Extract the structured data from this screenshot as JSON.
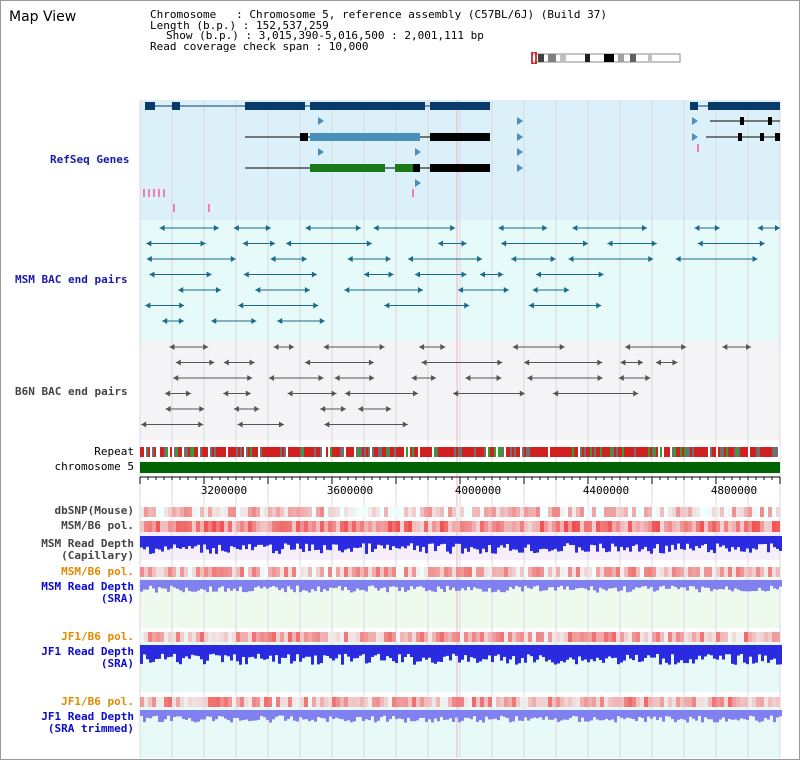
{
  "view": {
    "title": "Map View"
  },
  "info": {
    "chromosome": "Chromosome   : Chromosome 5, reference assembly (C57BL/6J) (Build 37)",
    "length": "Length (b.p.) : 152,537,259",
    "show": "Show (b.p.) : 3,015,390-5,016,500 : 2,001,111 bp",
    "coverage": "Read coverage check span : 10,000"
  },
  "tracks": {
    "refseq": "RefSeq Genes",
    "msm_bac": "MSM BAC end pairs",
    "b6n_bac": "B6N BAC end pairs",
    "repeat": "Repeat",
    "chromosome": "chromosome 5",
    "dbsnp": "dbSNP(Mouse)",
    "msm_b6_pol": "MSM/B6 pol.",
    "msm_depth_cap_1": "MSM Read Depth",
    "msm_depth_cap_2": "(Capillary)",
    "msm_b6_pol2": "MSM/B6 pol.",
    "msm_depth_sra_1": "MSM Read Depth",
    "msm_depth_sra_2": "(SRA)",
    "jf1_b6_pol": "JF1/B6 pol.",
    "jf1_depth_sra_1": "JF1 Read Depth",
    "jf1_depth_sra_2": "(SRA)",
    "jf1_b6_pol2": "JF1/B6 pol.",
    "jf1_depth_trim_1": "JF1 Read Depth",
    "jf1_depth_trim_2": "(SRA trimmed)"
  },
  "axis": {
    "ticks": [
      "3200000",
      "3600000",
      "4000000",
      "4400000",
      "4800000"
    ]
  },
  "colors": {
    "refseq_band": "#dcf0fa",
    "msm_band": "#e6fafa",
    "b6n_band": "#f4f4f6",
    "chromosome_bar": "#006400",
    "gene_dark": "#0a3a6a",
    "gene_mid": "#4a90b8",
    "gene_green": "#1a7a1a",
    "depth_blue": "#2a2ae0",
    "depth_light": "#8080f0",
    "pol_red": "#f03030"
  }
}
